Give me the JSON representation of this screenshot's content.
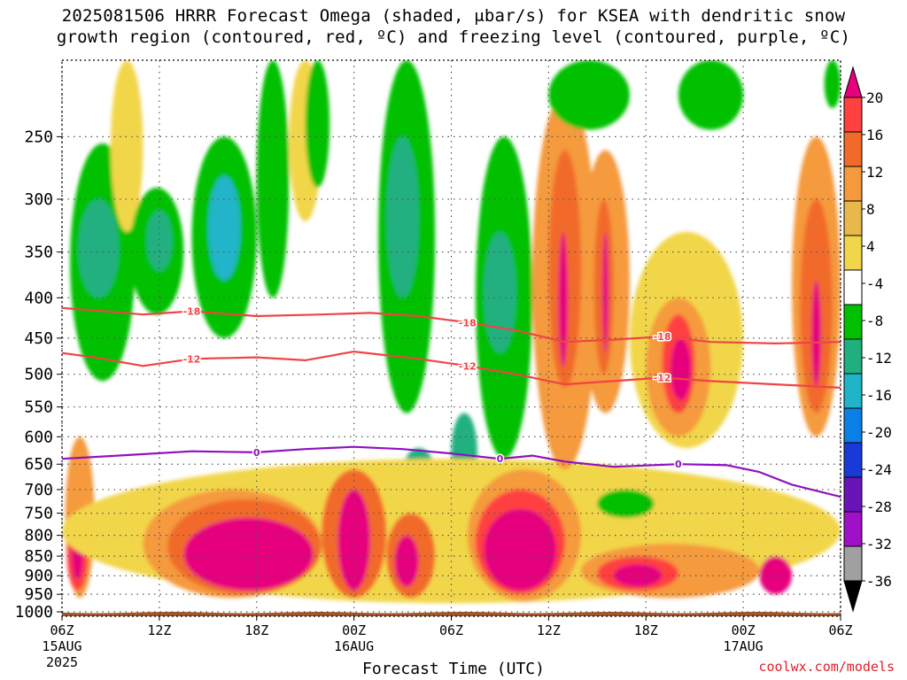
{
  "header": {
    "title_line1": "2025081506 HRRR Forecast Omega (shaded, μbar/s) for KSEA with dendritic snow",
    "title_line2": "growth region (contoured, red, ºC) and freezing level (contoured, purple, ºC)"
  },
  "footer": {
    "credit": "coolwx.com/models"
  },
  "chart_data": {
    "type": "heatmap",
    "xlabel": "Forecast Time (UTC)",
    "ylabel": "",
    "x_ticks": [
      {
        "hour": 0,
        "label": "06Z",
        "sub1": "15AUG",
        "sub2": "2025"
      },
      {
        "hour": 6,
        "label": "12Z",
        "sub1": "",
        "sub2": ""
      },
      {
        "hour": 12,
        "label": "18Z",
        "sub1": "",
        "sub2": ""
      },
      {
        "hour": 18,
        "label": "00Z",
        "sub1": "16AUG",
        "sub2": ""
      },
      {
        "hour": 24,
        "label": "06Z",
        "sub1": "",
        "sub2": ""
      },
      {
        "hour": 30,
        "label": "12Z",
        "sub1": "",
        "sub2": ""
      },
      {
        "hour": 36,
        "label": "18Z",
        "sub1": "",
        "sub2": ""
      },
      {
        "hour": 42,
        "label": "00Z",
        "sub1": "17AUG",
        "sub2": ""
      },
      {
        "hour": 48,
        "label": "06Z",
        "sub1": "",
        "sub2": ""
      }
    ],
    "xlim": [
      0,
      48
    ],
    "y_ticks": [
      250,
      300,
      350,
      400,
      450,
      500,
      550,
      600,
      650,
      700,
      750,
      800,
      850,
      900,
      950,
      1000
    ],
    "ylim": [
      1013,
      200
    ],
    "y_scale": "log-pressure",
    "grid": true,
    "colorbar": {
      "tick_labels": [
        "20",
        "16",
        "12",
        "8",
        "4",
        "-4",
        "-8",
        "-12",
        "-16",
        "-20",
        "-24",
        "-28",
        "-32",
        "-36"
      ],
      "colors": [
        "#e6007e",
        "#ff4040",
        "#f26a2a",
        "#f59a3c",
        "#e8b84a",
        "#f2d64a",
        "#ffffff",
        "#00c000",
        "#20b080",
        "#20b4c8",
        "#0a80e6",
        "#1a3ad8",
        "#6a14b8",
        "#a010c8",
        "#a0a0a0",
        "#000000"
      ]
    },
    "omega_cells": [
      {
        "t0": 0.2,
        "t1": 2,
        "p0": 600,
        "p1": 960,
        "v": 8
      },
      {
        "t0": 0.3,
        "t1": 1.6,
        "p0": 760,
        "p1": 940,
        "v": 16
      },
      {
        "t0": 0.6,
        "t1": 1.3,
        "p0": 800,
        "p1": 910,
        "v": 22
      },
      {
        "t0": 0.5,
        "t1": 4.5,
        "p0": 255,
        "p1": 510,
        "v": -6
      },
      {
        "t0": 1,
        "t1": 3.5,
        "p0": 300,
        "p1": 400,
        "v": -10
      },
      {
        "t0": 3,
        "t1": 5,
        "p0": 200,
        "p1": 330,
        "v": 5
      },
      {
        "t0": 4.2,
        "t1": 7.5,
        "p0": 290,
        "p1": 420,
        "v": -6
      },
      {
        "t0": 5.2,
        "t1": 6.8,
        "p0": 310,
        "p1": 370,
        "v": -10
      },
      {
        "t0": 8,
        "t1": 12,
        "p0": 250,
        "p1": 450,
        "v": -6
      },
      {
        "t0": 9,
        "t1": 11,
        "p0": 280,
        "p1": 380,
        "v": -12
      },
      {
        "t0": 12,
        "t1": 14,
        "p0": 200,
        "p1": 400,
        "v": -6
      },
      {
        "t0": 14,
        "t1": 16,
        "p0": 200,
        "p1": 320,
        "v": 5
      },
      {
        "t0": 15,
        "t1": 16.5,
        "p0": 200,
        "p1": 290,
        "v": -6
      },
      {
        "t0": 19.5,
        "t1": 23,
        "p0": 200,
        "p1": 560,
        "v": -6
      },
      {
        "t0": 20,
        "t1": 22,
        "p0": 250,
        "p1": 400,
        "v": -11
      },
      {
        "t0": 21,
        "t1": 23,
        "p0": 620,
        "p1": 720,
        "v": -8
      },
      {
        "t0": 25.5,
        "t1": 29,
        "p0": 250,
        "p1": 640,
        "v": -6
      },
      {
        "t0": 26,
        "t1": 28,
        "p0": 330,
        "p1": 470,
        "v": -10
      },
      {
        "t0": 24,
        "t1": 25.6,
        "p0": 560,
        "p1": 700,
        "v": -10
      },
      {
        "t0": 0,
        "t1": 48,
        "p0": 640,
        "p1": 975,
        "v": 5
      },
      {
        "t0": 5,
        "t1": 16,
        "p0": 700,
        "p1": 960,
        "v": 9
      },
      {
        "t0": 6.5,
        "t1": 16,
        "p0": 720,
        "p1": 950,
        "v": 15
      },
      {
        "t0": 7.5,
        "t1": 15.5,
        "p0": 760,
        "p1": 940,
        "v": 22
      },
      {
        "t0": 16,
        "t1": 20,
        "p0": 660,
        "p1": 960,
        "v": 12
      },
      {
        "t0": 17,
        "t1": 19,
        "p0": 700,
        "p1": 940,
        "v": 22
      },
      {
        "t0": 20,
        "t1": 23,
        "p0": 750,
        "p1": 960,
        "v": 15
      },
      {
        "t0": 20.5,
        "t1": 22,
        "p0": 800,
        "p1": 930,
        "v": 22
      },
      {
        "t0": 25,
        "t1": 32,
        "p0": 660,
        "p1": 970,
        "v": 10
      },
      {
        "t0": 25.5,
        "t1": 31,
        "p0": 700,
        "p1": 950,
        "v": 17
      },
      {
        "t0": 26,
        "t1": 30.5,
        "p0": 740,
        "p1": 940,
        "v": 22
      },
      {
        "t0": 32,
        "t1": 43,
        "p0": 820,
        "p1": 960,
        "v": 9
      },
      {
        "t0": 33,
        "t1": 38,
        "p0": 850,
        "p1": 940,
        "v": 16
      },
      {
        "t0": 34,
        "t1": 37,
        "p0": 870,
        "p1": 930,
        "v": 22
      },
      {
        "t0": 43,
        "t1": 45,
        "p0": 850,
        "p1": 950,
        "v": 22
      },
      {
        "t0": 29,
        "t1": 33,
        "p0": 220,
        "p1": 660,
        "v": 9
      },
      {
        "t0": 30,
        "t1": 32,
        "p0": 260,
        "p1": 520,
        "v": 14
      },
      {
        "t0": 30.6,
        "t1": 31.2,
        "p0": 330,
        "p1": 490,
        "v": 22
      },
      {
        "t0": 32,
        "t1": 35,
        "p0": 260,
        "p1": 560,
        "v": 9
      },
      {
        "t0": 32.8,
        "t1": 34,
        "p0": 300,
        "p1": 500,
        "v": 15
      },
      {
        "t0": 33.3,
        "t1": 33.7,
        "p0": 330,
        "p1": 470,
        "v": 22
      },
      {
        "t0": 35,
        "t1": 42,
        "p0": 330,
        "p1": 620,
        "v": 7
      },
      {
        "t0": 36,
        "t1": 40,
        "p0": 400,
        "p1": 600,
        "v": 11
      },
      {
        "t0": 37,
        "t1": 39,
        "p0": 420,
        "p1": 560,
        "v": 17
      },
      {
        "t0": 37.5,
        "t1": 38.8,
        "p0": 450,
        "p1": 540,
        "v": 22
      },
      {
        "t0": 45,
        "t1": 48,
        "p0": 250,
        "p1": 600,
        "v": 8
      },
      {
        "t0": 45.5,
        "t1": 47.5,
        "p0": 300,
        "p1": 560,
        "v": 14
      },
      {
        "t0": 46.2,
        "t1": 46.8,
        "p0": 380,
        "p1": 520,
        "v": 20
      },
      {
        "t0": 30,
        "t1": 35,
        "p0": 200,
        "p1": 245,
        "v": -5
      },
      {
        "t0": 38,
        "t1": 42,
        "p0": 200,
        "p1": 245,
        "v": -5
      },
      {
        "t0": 33,
        "t1": 36.5,
        "p0": 700,
        "p1": 760,
        "v": -6
      },
      {
        "t0": 47,
        "t1": 48,
        "p0": 200,
        "p1": 230,
        "v": -5
      }
    ],
    "contours": [
      {
        "label": "-18",
        "color": "#f04444",
        "points": [
          [
            0,
            412
          ],
          [
            2,
            415
          ],
          [
            5,
            420
          ],
          [
            8,
            416
          ],
          [
            12,
            422
          ],
          [
            16,
            420
          ],
          [
            19,
            418
          ],
          [
            22,
            422
          ],
          [
            25,
            430
          ],
          [
            28,
            440
          ],
          [
            31,
            455
          ],
          [
            34,
            452
          ],
          [
            37,
            448
          ],
          [
            40,
            455
          ],
          [
            44,
            457
          ],
          [
            48,
            455
          ]
        ]
      },
      {
        "label": "-12",
        "color": "#f04444",
        "points": [
          [
            0,
            470
          ],
          [
            2,
            476
          ],
          [
            5,
            488
          ],
          [
            8,
            478
          ],
          [
            12,
            476
          ],
          [
            15,
            480
          ],
          [
            18,
            468
          ],
          [
            22,
            478
          ],
          [
            25,
            488
          ],
          [
            28,
            500
          ],
          [
            31,
            515
          ],
          [
            34,
            510
          ],
          [
            37,
            505
          ],
          [
            40,
            510
          ],
          [
            44,
            515
          ],
          [
            48,
            520
          ]
        ]
      },
      {
        "label": "0",
        "color": "#9010c0",
        "points": [
          [
            0,
            640
          ],
          [
            4,
            633
          ],
          [
            8,
            626
          ],
          [
            12,
            628
          ],
          [
            15,
            622
          ],
          [
            18,
            618
          ],
          [
            21,
            622
          ],
          [
            24,
            630
          ],
          [
            27,
            640
          ],
          [
            29,
            634
          ],
          [
            31,
            645
          ],
          [
            34,
            655
          ],
          [
            38,
            650
          ],
          [
            41,
            652
          ],
          [
            43,
            665
          ],
          [
            45,
            690
          ],
          [
            48,
            715
          ]
        ]
      }
    ]
  }
}
